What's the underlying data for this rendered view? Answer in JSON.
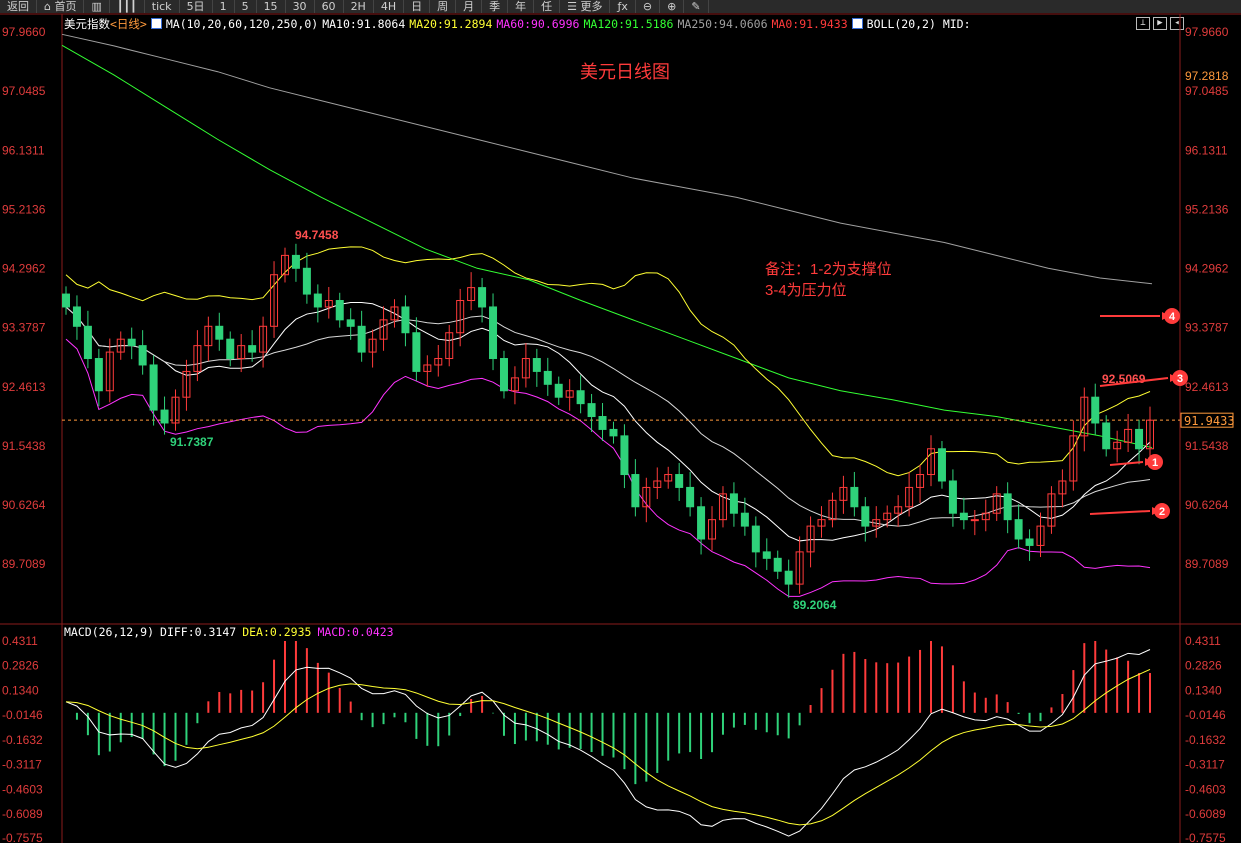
{
  "toolbar": [
    "返回",
    "首页",
    "成交",
    "K线",
    "tick",
    "5日",
    "1",
    "5",
    "15",
    "30",
    "60",
    "2H",
    "4H",
    "日",
    "周",
    "月",
    "季",
    "年",
    "任",
    "更多",
    "fx",
    "缩小",
    "放大",
    "画线"
  ],
  "header": {
    "name": "美元指数",
    "period": "<日线>",
    "ma_label": "MA(10,20,60,120,250,0)",
    "ma10": "MA10:91.8064",
    "ma20": "MA20:91.2894",
    "ma60": "MA60:90.6996",
    "ma120": "MA120:91.5186",
    "ma250": "MA250:94.0606",
    "ma0": "MA0:91.9433",
    "boll": "BOLL(20,2) MID:"
  },
  "colors": {
    "up": "#ff3b3b",
    "down": "#2fd27a",
    "ma10": "#ffffff",
    "ma20": "#ffff33",
    "ma60": "#ff33ff",
    "ma120": "#33ff33",
    "ma250": "#a0a0a0",
    "ma0": "#ff3b3b",
    "axis_text": "#e03c3c",
    "current": "#ff9a3c"
  },
  "annotations": {
    "title": "美元日线图",
    "note_line1": "备注：1-2为支撑位",
    "note_line2": "3-4为压力位",
    "markers": [
      "1",
      "2",
      "3",
      "4"
    ],
    "high_label": "94.7458",
    "low_label_left": "91.7387",
    "low_label": "89.2064",
    "recent_high_label": "92.5069",
    "current_price": "91.9433"
  },
  "macd_header": {
    "label": "MACD(26,12,9)",
    "diff": "DIFF:0.3147",
    "dea": "DEA:0.2935",
    "macd": "MACD:0.0423"
  },
  "chart_data": [
    {
      "type": "candlestick",
      "price_axis": {
        "ticks": [
          "97.9660",
          "97.0485",
          "96.1311",
          "95.2136",
          "94.2962",
          "93.3787",
          "92.4613",
          "91.5438",
          "90.6264",
          "89.7089"
        ],
        "range": [
          89.7089,
          97.966
        ],
        "extra_right_tick": "97.2818"
      },
      "closes": [
        93.7,
        93.4,
        92.9,
        92.4,
        93.0,
        93.2,
        93.1,
        92.8,
        92.1,
        91.9,
        92.3,
        92.7,
        93.1,
        93.4,
        93.2,
        92.9,
        93.1,
        93.0,
        93.4,
        94.2,
        94.5,
        94.3,
        93.9,
        93.7,
        93.8,
        93.5,
        93.4,
        93.0,
        93.2,
        93.5,
        93.7,
        93.3,
        92.7,
        92.8,
        92.9,
        93.3,
        93.8,
        94.0,
        93.7,
        92.9,
        92.4,
        92.6,
        92.9,
        92.7,
        92.5,
        92.3,
        92.4,
        92.2,
        92.0,
        91.8,
        91.7,
        91.1,
        90.6,
        90.9,
        91.0,
        91.1,
        90.9,
        90.6,
        90.1,
        90.4,
        90.8,
        90.5,
        90.3,
        89.9,
        89.8,
        89.6,
        89.4,
        89.9,
        90.3,
        90.4,
        90.7,
        90.9,
        90.6,
        90.3,
        90.4,
        90.5,
        90.6,
        90.9,
        91.1,
        91.5,
        91.0,
        90.5,
        90.4,
        90.4,
        90.5,
        90.8,
        90.4,
        90.1,
        90.0,
        90.3,
        90.8,
        91.0,
        91.7,
        92.3,
        91.9,
        91.5,
        91.6,
        91.8,
        91.5,
        91.9433
      ],
      "ma120": [
        97.76,
        97.3,
        96.8,
        96.3,
        95.83,
        95.4,
        95.0,
        94.6,
        94.3,
        94.12,
        93.8,
        93.5,
        93.2,
        92.9,
        92.6,
        92.4,
        92.26,
        92.1,
        92.0,
        91.85,
        91.7,
        91.5186
      ],
      "ma250": [
        97.93,
        97.75,
        97.55,
        97.35,
        97.1,
        96.9,
        96.7,
        96.5,
        96.3,
        96.1,
        95.9,
        95.7,
        95.55,
        95.4,
        95.2,
        95.0,
        94.85,
        94.7,
        94.5,
        94.3,
        94.15,
        94.0606
      ]
    },
    {
      "type": "bar+line",
      "title": "MACD(26,12,9)",
      "axis": {
        "ticks": [
          "0.4311",
          "0.2826",
          "0.1340",
          "-0.0146",
          "-0.1632",
          "-0.3117",
          "-0.4603",
          "-0.6089",
          "-0.7575"
        ],
        "range": [
          -0.7575,
          0.4311
        ]
      }
    }
  ]
}
